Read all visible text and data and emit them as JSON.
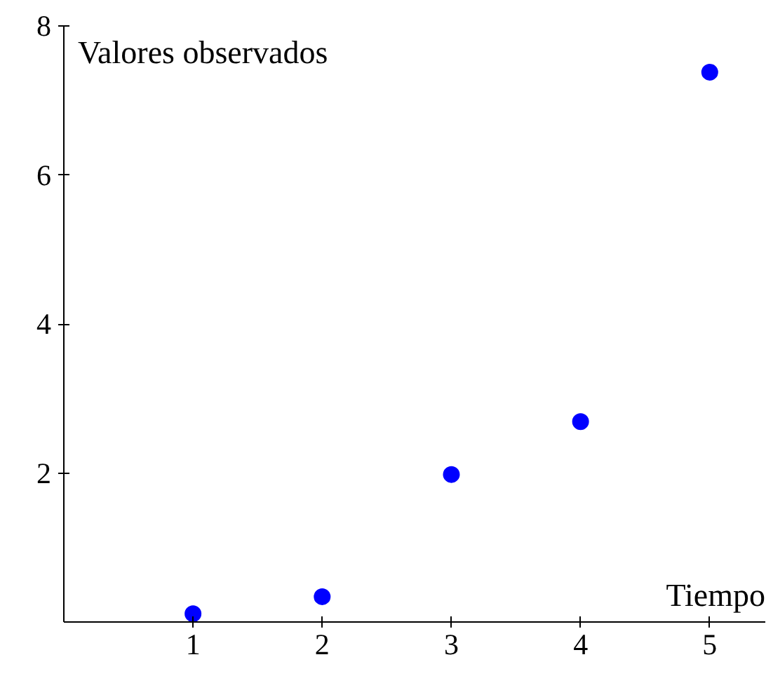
{
  "chart_data": {
    "type": "scatter",
    "xlabel": "Tiempo",
    "ylabel": "Valores observados",
    "x": [
      1,
      2,
      3,
      4,
      5
    ],
    "series": [
      {
        "color": "#0000ff",
        "values": [
          0.11,
          0.34,
          1.98,
          2.69,
          7.38
        ]
      }
    ],
    "xlim": [
      0,
      5.43
    ],
    "ylim": [
      0,
      8
    ],
    "xticks": [
      1,
      2,
      3,
      4,
      5
    ],
    "yticks": [
      2,
      4,
      6,
      8
    ],
    "marker": "circle"
  }
}
